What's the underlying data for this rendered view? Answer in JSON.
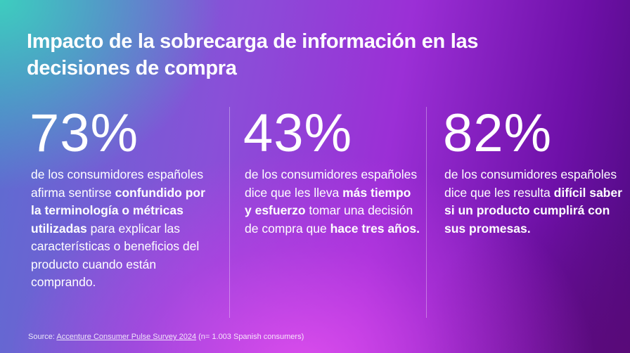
{
  "title": "Impacto de la sobrecarga de información en las decisiones de compra",
  "stats": [
    {
      "value": "73%",
      "text_1": "de los consumidores españoles afirma sentirse ",
      "bold_1": "confundido por la terminología o métricas utilizadas",
      "text_2": " para explicar las características o beneficios del producto cuando están comprando.",
      "bold_2": ""
    },
    {
      "value": "43%",
      "text_1": "de los consumidores españoles dice que les lleva ",
      "bold_1": "más tiempo y esfuerzo",
      "text_2": " tomar una decisión de compra que ",
      "bold_2": "hace tres años."
    },
    {
      "value": "82%",
      "text_1": "de los consumidores españoles dice que les resulta ",
      "bold_1": "difícil saber si un producto cumplirá con sus promesas.",
      "text_2": "",
      "bold_2": ""
    }
  ],
  "source": {
    "prefix": "Source: ",
    "link": "Accenture Consumer Pulse Survey 2024",
    "suffix": " (n= 1.003 Spanish consumers)"
  }
}
